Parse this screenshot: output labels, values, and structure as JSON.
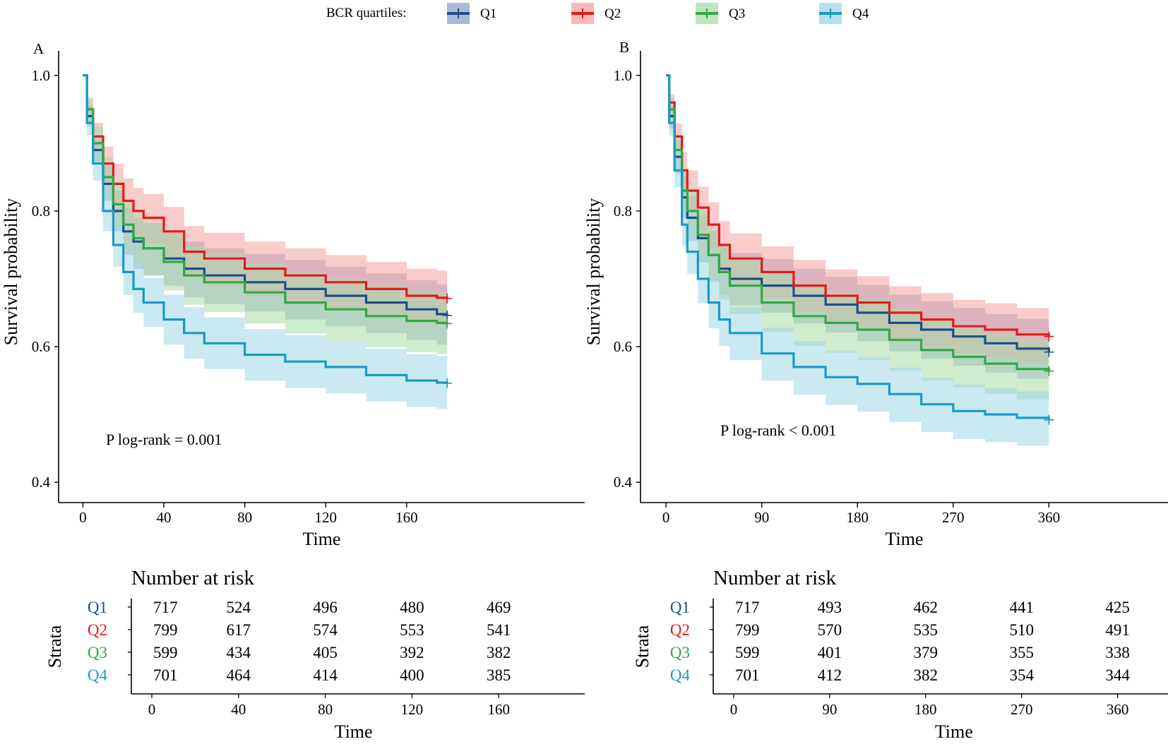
{
  "legend": {
    "title": "BCR quartiles:",
    "entries": [
      {
        "label": "Q1",
        "color": "#1c4f8a"
      },
      {
        "label": "Q2",
        "color": "#e31a1c"
      },
      {
        "label": "Q3",
        "color": "#33a745"
      },
      {
        "label": "Q4",
        "color": "#1a9ac4"
      }
    ]
  },
  "chart_data": [
    {
      "type": "line",
      "panel": "A",
      "title": "",
      "xlabel": "Time",
      "ylabel": "Survival probability",
      "xlim": [
        -12,
        248
      ],
      "ylim": [
        0.37,
        1.03
      ],
      "xticks": [
        0,
        40,
        80,
        120,
        160
      ],
      "yticks": [
        0.4,
        0.6,
        0.8,
        1.0
      ],
      "ytick_labels": [
        "0.4",
        "0.6",
        "0.8",
        "1.0"
      ],
      "annotation": "P log-rank = 0.001",
      "series": [
        {
          "name": "Q1",
          "color": "#1c4f8a",
          "band": "#8ea2cc",
          "x": [
            0,
            2,
            5,
            10,
            15,
            20,
            25,
            30,
            40,
            50,
            60,
            80,
            100,
            120,
            140,
            160,
            175,
            180
          ],
          "y": [
            1.0,
            0.94,
            0.89,
            0.84,
            0.8,
            0.77,
            0.755,
            0.745,
            0.73,
            0.715,
            0.705,
            0.695,
            0.685,
            0.675,
            0.665,
            0.655,
            0.648,
            0.646
          ],
          "lower": [
            1.0,
            0.925,
            0.87,
            0.815,
            0.77,
            0.735,
            0.715,
            0.705,
            0.69,
            0.673,
            0.663,
            0.652,
            0.64,
            0.63,
            0.62,
            0.61,
            0.603,
            0.601
          ],
          "upper": [
            1.0,
            0.955,
            0.91,
            0.865,
            0.83,
            0.805,
            0.79,
            0.782,
            0.768,
            0.755,
            0.745,
            0.737,
            0.728,
            0.718,
            0.708,
            0.698,
            0.692,
            0.69
          ]
        },
        {
          "name": "Q2",
          "color": "#e31a1c",
          "band": "#f4a0a0",
          "x": [
            0,
            2,
            5,
            10,
            15,
            20,
            25,
            30,
            40,
            50,
            60,
            80,
            100,
            120,
            140,
            160,
            175,
            180
          ],
          "y": [
            1.0,
            0.95,
            0.91,
            0.87,
            0.84,
            0.815,
            0.8,
            0.79,
            0.77,
            0.74,
            0.73,
            0.715,
            0.705,
            0.695,
            0.685,
            0.675,
            0.672,
            0.671
          ],
          "lower": [
            1.0,
            0.935,
            0.89,
            0.84,
            0.808,
            0.78,
            0.764,
            0.752,
            0.732,
            0.702,
            0.69,
            0.675,
            0.665,
            0.655,
            0.645,
            0.635,
            0.632,
            0.631
          ],
          "upper": [
            1.0,
            0.965,
            0.93,
            0.895,
            0.87,
            0.848,
            0.834,
            0.825,
            0.806,
            0.778,
            0.768,
            0.755,
            0.745,
            0.735,
            0.725,
            0.715,
            0.712,
            0.711
          ]
        },
        {
          "name": "Q3",
          "color": "#33a745",
          "band": "#a8dca8",
          "x": [
            0,
            2,
            5,
            10,
            15,
            20,
            25,
            30,
            40,
            50,
            60,
            80,
            100,
            120,
            140,
            160,
            175,
            180
          ],
          "y": [
            1.0,
            0.95,
            0.9,
            0.85,
            0.81,
            0.78,
            0.76,
            0.745,
            0.725,
            0.705,
            0.695,
            0.68,
            0.665,
            0.655,
            0.645,
            0.638,
            0.635,
            0.634
          ],
          "lower": [
            1.0,
            0.93,
            0.875,
            0.818,
            0.776,
            0.744,
            0.722,
            0.706,
            0.683,
            0.662,
            0.651,
            0.634,
            0.619,
            0.609,
            0.599,
            0.592,
            0.589,
            0.588
          ],
          "upper": [
            1.0,
            0.968,
            0.925,
            0.88,
            0.843,
            0.815,
            0.797,
            0.783,
            0.766,
            0.748,
            0.738,
            0.724,
            0.71,
            0.7,
            0.69,
            0.683,
            0.68,
            0.679
          ]
        },
        {
          "name": "Q4",
          "color": "#1a9ac4",
          "band": "#9fd7e6",
          "x": [
            0,
            2,
            5,
            10,
            15,
            20,
            25,
            30,
            40,
            50,
            60,
            80,
            100,
            120,
            140,
            160,
            175,
            180
          ],
          "y": [
            1.0,
            0.93,
            0.87,
            0.8,
            0.75,
            0.71,
            0.685,
            0.665,
            0.64,
            0.62,
            0.605,
            0.588,
            0.578,
            0.57,
            0.558,
            0.55,
            0.547,
            0.546
          ],
          "lower": [
            1.0,
            0.912,
            0.845,
            0.77,
            0.718,
            0.676,
            0.65,
            0.629,
            0.603,
            0.582,
            0.567,
            0.55,
            0.539,
            0.531,
            0.519,
            0.511,
            0.508,
            0.507
          ],
          "upper": [
            1.0,
            0.948,
            0.893,
            0.83,
            0.782,
            0.744,
            0.72,
            0.701,
            0.677,
            0.658,
            0.643,
            0.626,
            0.617,
            0.609,
            0.597,
            0.589,
            0.586,
            0.585
          ]
        }
      ],
      "risk_table": {
        "title": "Number at risk",
        "ylabel": "Strata",
        "xlabel": "Time",
        "times": [
          0,
          40,
          80,
          120,
          160
        ],
        "time_labels": [
          "0",
          "40",
          "80",
          "120",
          "160"
        ],
        "rows": [
          {
            "label": "Q1",
            "values": [
              "717",
              "524",
              "496",
              "480",
              "469"
            ]
          },
          {
            "label": "Q2",
            "values": [
              "799",
              "617",
              "574",
              "553",
              "541"
            ]
          },
          {
            "label": "Q3",
            "values": [
              "599",
              "434",
              "405",
              "392",
              "382"
            ]
          },
          {
            "label": "Q4",
            "values": [
              "701",
              "464",
              "414",
              "400",
              "385"
            ]
          }
        ]
      }
    },
    {
      "type": "line",
      "panel": "B",
      "title": "",
      "xlabel": "Time",
      "ylabel": "Survival probability",
      "xlim": [
        -24,
        472
      ],
      "ylim": [
        0.37,
        1.03
      ],
      "xticks": [
        0,
        90,
        180,
        270,
        360
      ],
      "yticks": [
        0.4,
        0.6,
        0.8,
        1.0
      ],
      "ytick_labels": [
        "0.4",
        "0.6",
        "0.8",
        "1.0"
      ],
      "annotation": "P log-rank < 0.001",
      "series": [
        {
          "name": "Q1",
          "color": "#1c4f8a",
          "band": "#8ea2cc",
          "x": [
            0,
            3,
            8,
            15,
            20,
            30,
            40,
            50,
            60,
            90,
            120,
            150,
            180,
            210,
            240,
            270,
            300,
            330,
            360
          ],
          "y": [
            1.0,
            0.94,
            0.88,
            0.82,
            0.79,
            0.76,
            0.735,
            0.715,
            0.7,
            0.69,
            0.675,
            0.662,
            0.65,
            0.635,
            0.625,
            0.615,
            0.605,
            0.597,
            0.592
          ],
          "lower": [
            1.0,
            0.922,
            0.855,
            0.79,
            0.756,
            0.724,
            0.698,
            0.677,
            0.661,
            0.65,
            0.634,
            0.621,
            0.608,
            0.593,
            0.582,
            0.572,
            0.562,
            0.553,
            0.548
          ],
          "upper": [
            1.0,
            0.956,
            0.903,
            0.85,
            0.822,
            0.794,
            0.771,
            0.752,
            0.738,
            0.729,
            0.715,
            0.703,
            0.691,
            0.677,
            0.667,
            0.657,
            0.648,
            0.641,
            0.636
          ]
        },
        {
          "name": "Q2",
          "color": "#e31a1c",
          "band": "#f4a0a0",
          "x": [
            0,
            3,
            8,
            15,
            20,
            30,
            40,
            50,
            60,
            90,
            120,
            150,
            180,
            210,
            240,
            270,
            300,
            330,
            360
          ],
          "y": [
            1.0,
            0.96,
            0.91,
            0.86,
            0.83,
            0.805,
            0.78,
            0.75,
            0.73,
            0.71,
            0.69,
            0.675,
            0.665,
            0.65,
            0.64,
            0.63,
            0.625,
            0.618,
            0.615
          ],
          "lower": [
            1.0,
            0.945,
            0.89,
            0.832,
            0.798,
            0.772,
            0.745,
            0.714,
            0.693,
            0.672,
            0.651,
            0.635,
            0.625,
            0.61,
            0.6,
            0.59,
            0.585,
            0.578,
            0.575
          ],
          "upper": [
            1.0,
            0.972,
            0.929,
            0.887,
            0.86,
            0.836,
            0.813,
            0.785,
            0.767,
            0.748,
            0.728,
            0.714,
            0.704,
            0.689,
            0.679,
            0.669,
            0.664,
            0.657,
            0.654
          ]
        },
        {
          "name": "Q3",
          "color": "#33a745",
          "band": "#a8dca8",
          "x": [
            0,
            3,
            8,
            15,
            20,
            30,
            40,
            50,
            60,
            90,
            120,
            150,
            180,
            210,
            240,
            270,
            300,
            330,
            360
          ],
          "y": [
            1.0,
            0.95,
            0.89,
            0.83,
            0.8,
            0.765,
            0.735,
            0.71,
            0.69,
            0.665,
            0.645,
            0.635,
            0.625,
            0.61,
            0.595,
            0.585,
            0.575,
            0.567,
            0.564
          ],
          "lower": [
            1.0,
            0.93,
            0.865,
            0.798,
            0.764,
            0.727,
            0.695,
            0.669,
            0.648,
            0.622,
            0.601,
            0.591,
            0.58,
            0.565,
            0.55,
            0.54,
            0.53,
            0.522,
            0.519
          ],
          "upper": [
            1.0,
            0.967,
            0.914,
            0.861,
            0.834,
            0.802,
            0.774,
            0.751,
            0.732,
            0.708,
            0.689,
            0.679,
            0.67,
            0.655,
            0.64,
            0.63,
            0.62,
            0.612,
            0.609
          ]
        },
        {
          "name": "Q4",
          "color": "#1a9ac4",
          "band": "#9fd7e6",
          "x": [
            0,
            3,
            8,
            15,
            20,
            30,
            40,
            50,
            60,
            90,
            120,
            150,
            180,
            210,
            240,
            270,
            300,
            330,
            360
          ],
          "y": [
            1.0,
            0.93,
            0.86,
            0.78,
            0.74,
            0.7,
            0.665,
            0.64,
            0.62,
            0.59,
            0.57,
            0.555,
            0.545,
            0.53,
            0.515,
            0.505,
            0.5,
            0.495,
            0.492
          ],
          "lower": [
            1.0,
            0.911,
            0.835,
            0.749,
            0.707,
            0.664,
            0.627,
            0.601,
            0.58,
            0.55,
            0.529,
            0.514,
            0.504,
            0.489,
            0.474,
            0.464,
            0.459,
            0.454,
            0.452
          ],
          "upper": [
            1.0,
            0.947,
            0.884,
            0.81,
            0.772,
            0.734,
            0.701,
            0.677,
            0.658,
            0.628,
            0.608,
            0.594,
            0.584,
            0.569,
            0.554,
            0.544,
            0.539,
            0.534,
            0.531
          ]
        }
      ],
      "risk_table": {
        "title": "Number at risk",
        "ylabel": "Strata",
        "xlabel": "Time",
        "times": [
          0,
          90,
          180,
          270,
          360
        ],
        "time_labels": [
          "0",
          "90",
          "180",
          "270",
          "360"
        ],
        "rows": [
          {
            "label": "Q1",
            "values": [
              "717",
              "493",
              "462",
              "441",
              "425"
            ]
          },
          {
            "label": "Q2",
            "values": [
              "799",
              "570",
              "535",
              "510",
              "491"
            ]
          },
          {
            "label": "Q3",
            "values": [
              "599",
              "401",
              "379",
              "355",
              "338"
            ]
          },
          {
            "label": "Q4",
            "values": [
              "701",
              "412",
              "382",
              "354",
              "344"
            ]
          }
        ]
      }
    }
  ]
}
